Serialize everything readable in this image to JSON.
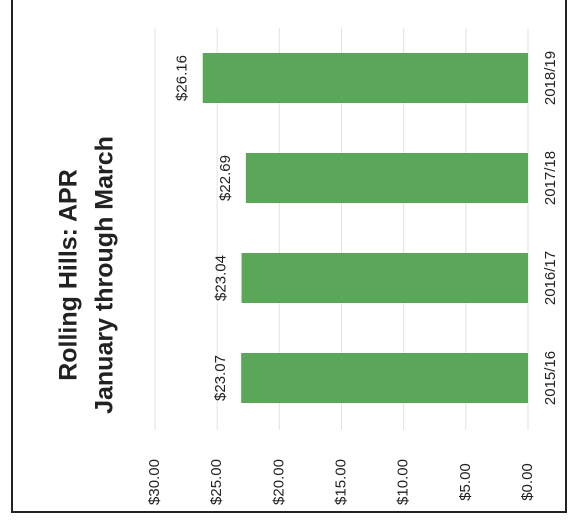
{
  "chart_data": {
    "type": "bar",
    "orientation": "horizontal",
    "title": "Rolling Hills: APR",
    "subtitle": "January through March",
    "categories": [
      "2015/16",
      "2016/17",
      "2017/18",
      "2018/19"
    ],
    "values": [
      23.07,
      23.04,
      22.69,
      26.16
    ],
    "value_labels": [
      "$23.07",
      "$23.04",
      "$22.69",
      "$26.16"
    ],
    "color": "#5aa75a",
    "ylim": [
      0,
      30
    ],
    "yticks": [
      {
        "value": 0,
        "label": "$0.00"
      },
      {
        "value": 5,
        "label": "$5.00"
      },
      {
        "value": 10,
        "label": "$10.00"
      },
      {
        "value": 15,
        "label": "$15.00"
      },
      {
        "value": 20,
        "label": "$20.00"
      },
      {
        "value": 25,
        "label": "$25.00"
      },
      {
        "value": 30,
        "label": "$30.00"
      }
    ],
    "grid": true
  }
}
